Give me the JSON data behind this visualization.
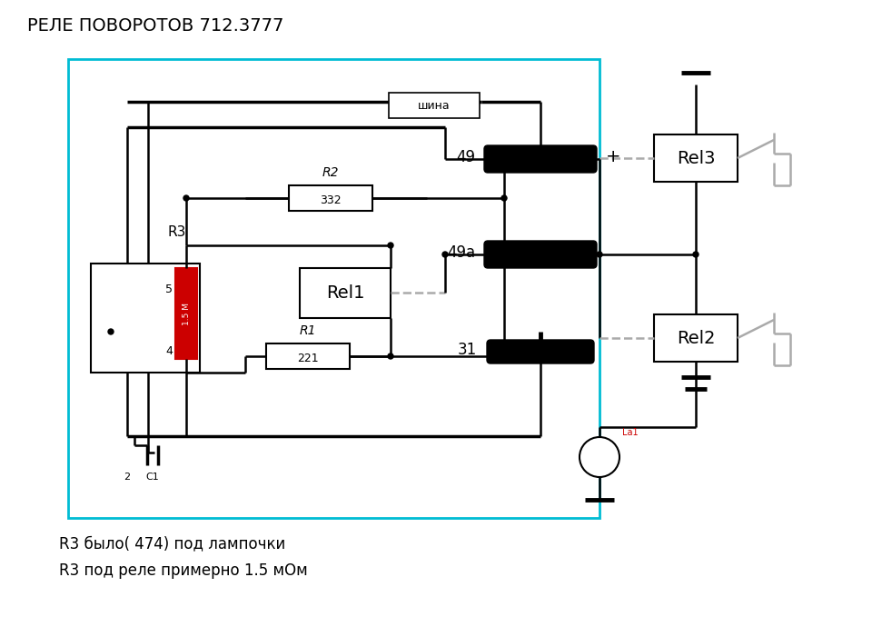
{
  "title": "РЕЛЕ ПОВОРОТОВ 712.3777",
  "note1": "R3 было( 474) под лампочки",
  "note2": "R3 под реле примерно 1.5 мОм",
  "bg_color": "#ffffff",
  "line_color": "#000000",
  "cyan_color": "#00bcd4",
  "red_color": "#cc0000",
  "gray_color": "#aaaaaa"
}
